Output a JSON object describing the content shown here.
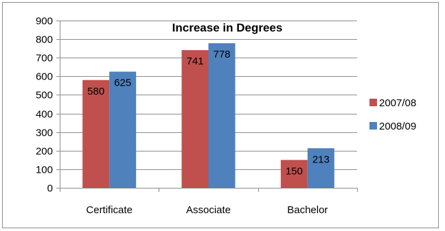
{
  "chart_data": {
    "type": "bar",
    "title": "Increase in Degrees",
    "categories": [
      "Certificate",
      "Associate",
      "Bachelor"
    ],
    "series": [
      {
        "name": "2007/08",
        "values": [
          580,
          741,
          150
        ],
        "color": "#C0504D"
      },
      {
        "name": "2008/09",
        "values": [
          625,
          778,
          213
        ],
        "color": "#4F81BD"
      }
    ],
    "ylim": [
      0,
      900
    ],
    "yticks": [
      0,
      100,
      200,
      300,
      400,
      500,
      600,
      700,
      800,
      900
    ],
    "grid": true,
    "legend_position": "right",
    "data_labels": true
  }
}
